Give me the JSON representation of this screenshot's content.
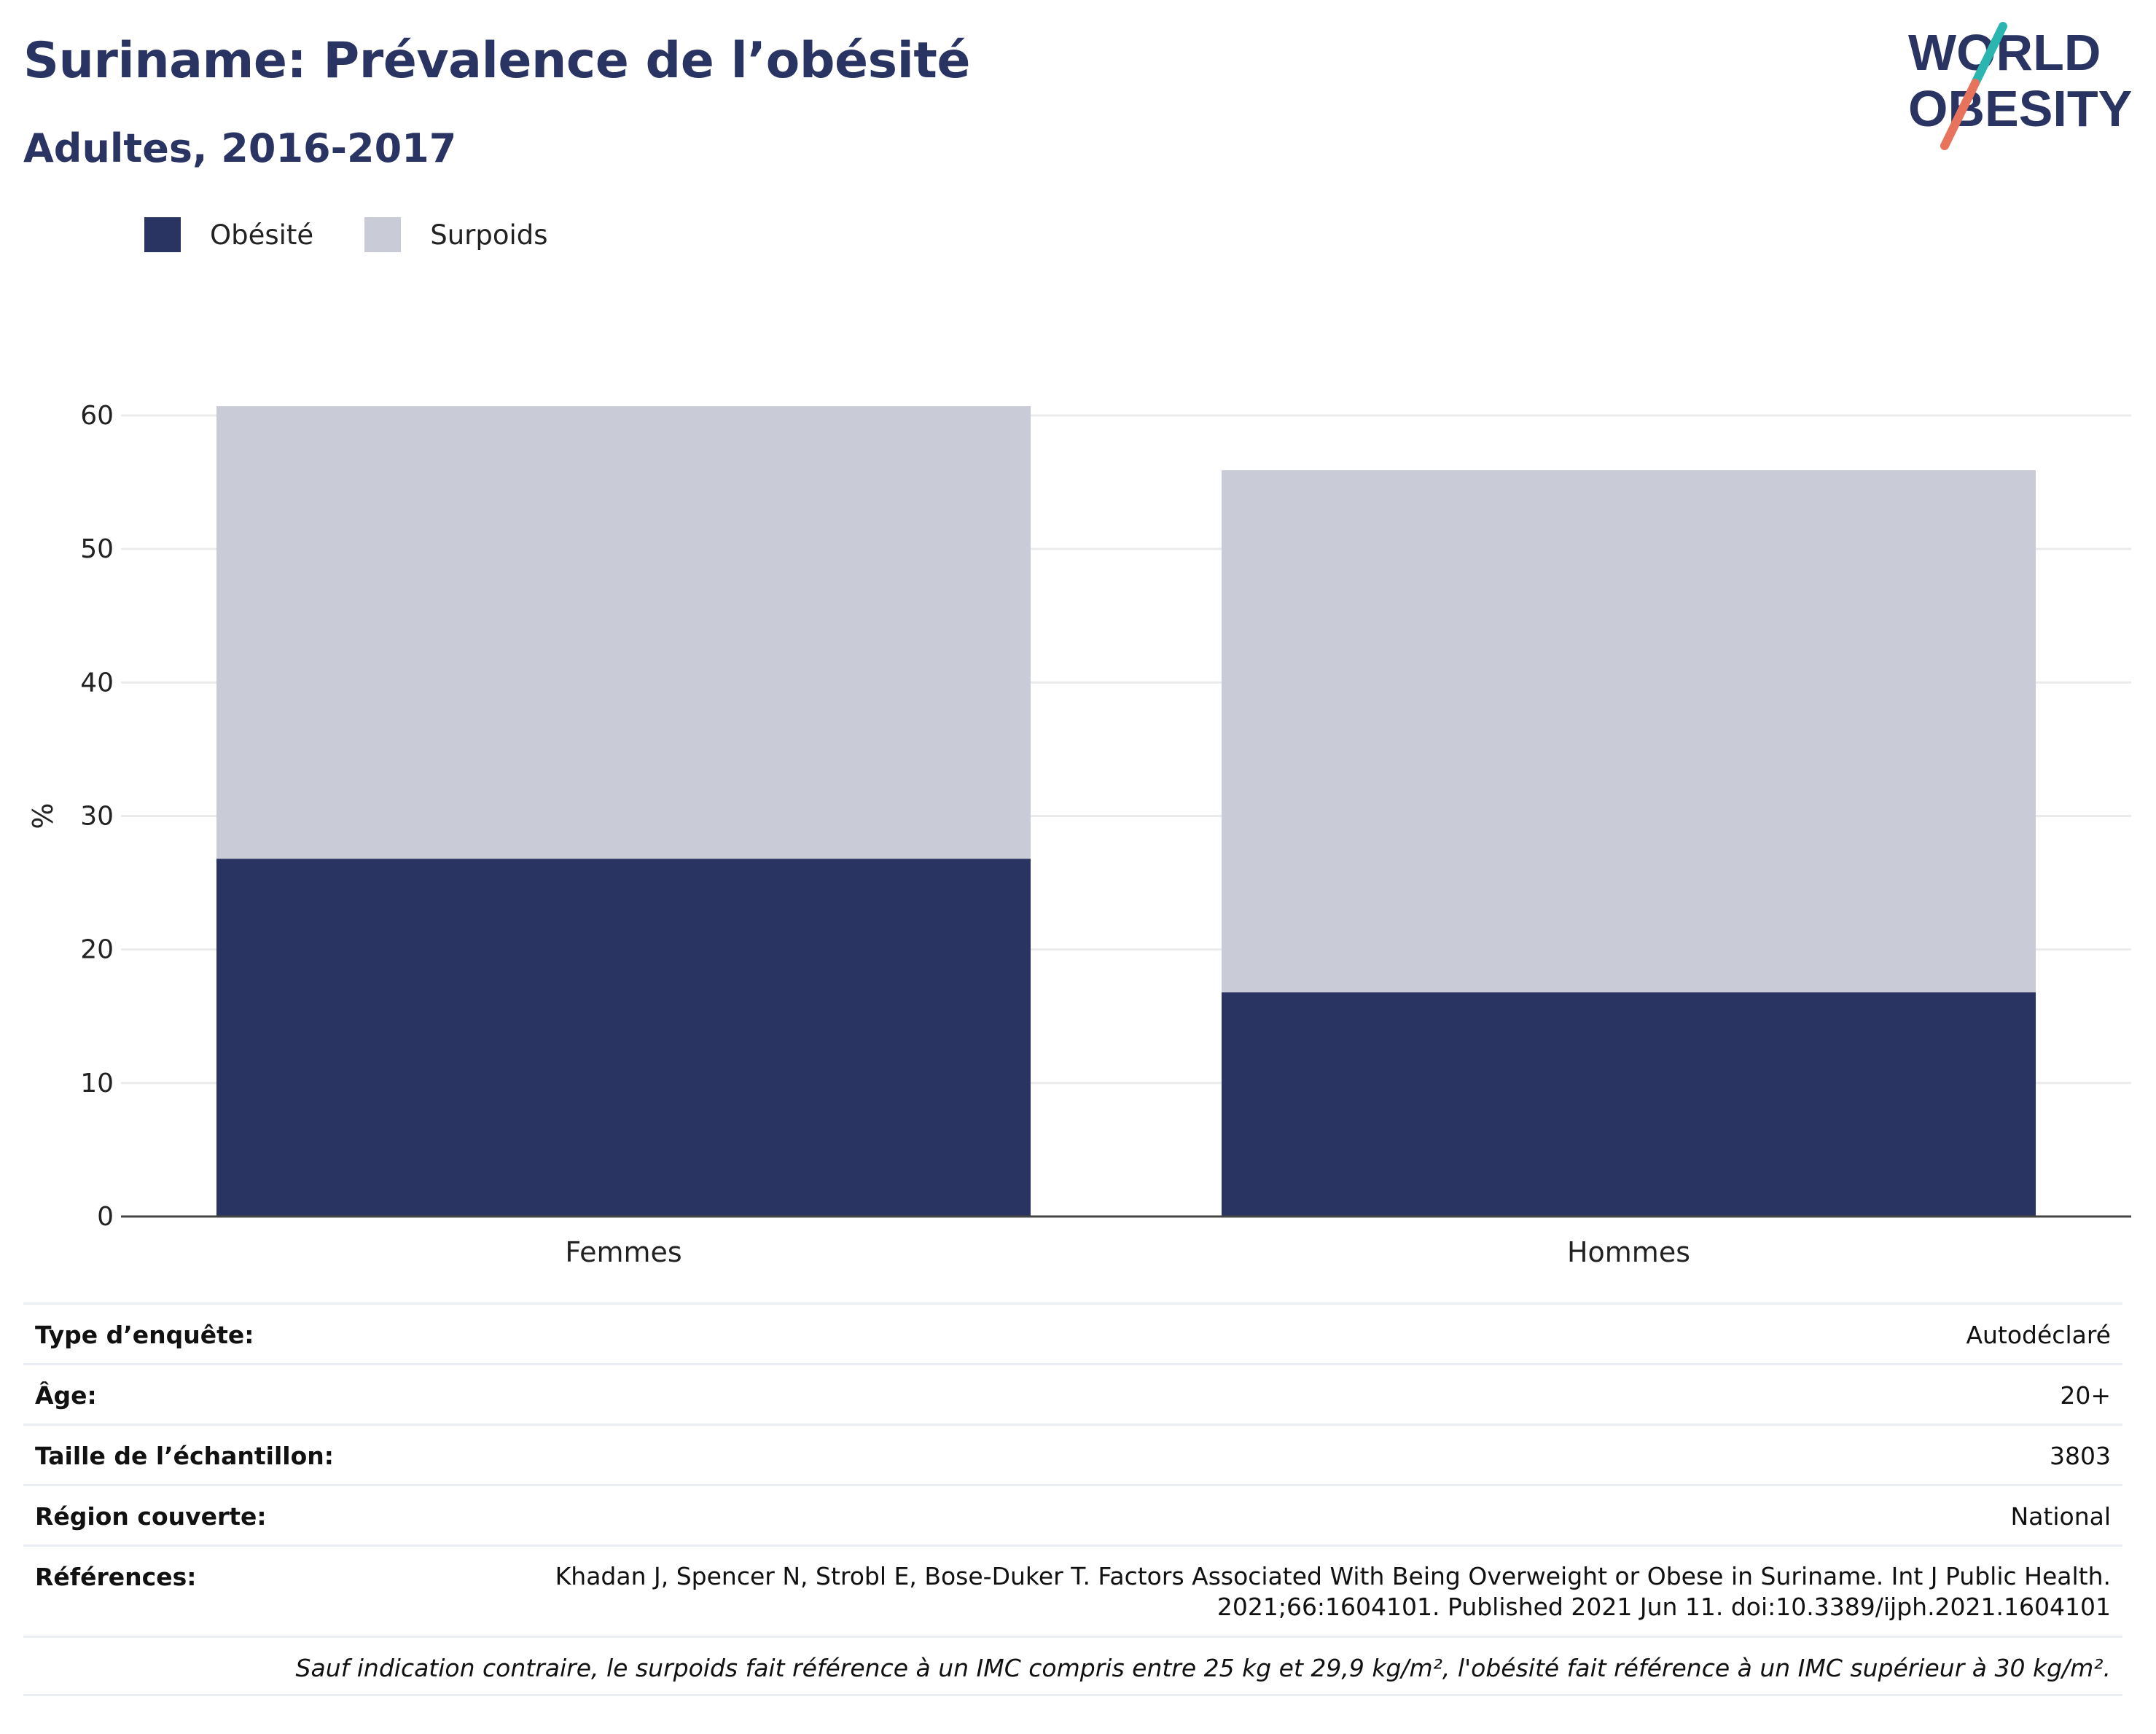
{
  "header": {
    "title": "Suriname: Prévalence de l’obésité",
    "subtitle": "Adultes, 2016-2017"
  },
  "logo": {
    "line1": "WORLD",
    "line2": "OBESITY"
  },
  "colors": {
    "obesity": "#293462",
    "overweight": "#c9ccd7",
    "logo_teal": "#2ab5b0",
    "logo_coral": "#e8735c"
  },
  "chart_data": {
    "type": "bar",
    "stacked": true,
    "categories": [
      "Femmes",
      "Hommes"
    ],
    "series": [
      {
        "name": "Obésité",
        "values": [
          26.8,
          16.8
        ]
      },
      {
        "name": "Surpoids",
        "values": [
          33.9,
          39.1
        ]
      }
    ],
    "ylabel": "%",
    "ylim": [
      0,
      60
    ],
    "yticks": [
      0,
      10,
      20,
      30,
      40,
      50,
      60
    ],
    "grid": true,
    "legend_position": "top-left"
  },
  "info": {
    "survey_type": {
      "label": "Type d’enquête:",
      "value": "Autodéclaré"
    },
    "age": {
      "label": "Âge:",
      "value": "20+"
    },
    "sample_size": {
      "label": "Taille de l’échantillon:",
      "value": "3803"
    },
    "region": {
      "label": "Région couverte:",
      "value": "National"
    },
    "references": {
      "label": "Références:",
      "line1": "Khadan J, Spencer N, Strobl E, Bose-Duker T. Factors Associated With Being Overweight or Obese in Suriname. Int J Public Health.",
      "line2": "2021;66:1604101. Published 2021 Jun 11. doi:10.3389/ijph.2021.1604101"
    },
    "note": "Sauf indication contraire, le surpoids fait référence à un IMC compris entre 25 kg et 29,9 kg/m², l'obésité fait référence à un IMC supérieur à 30 kg/m²."
  }
}
